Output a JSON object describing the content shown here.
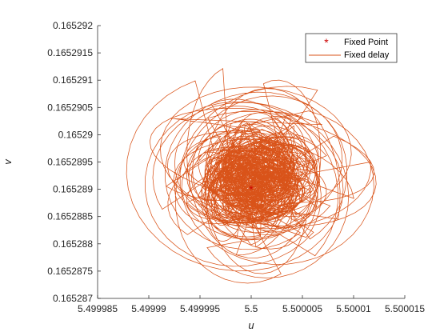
{
  "chart_data": {
    "type": "line",
    "title": "",
    "xlabel": "u",
    "ylabel": "v",
    "xlim": [
      5.499985,
      5.500015
    ],
    "ylim": [
      0.165287,
      0.165292
    ],
    "x_ticks": [
      5.499985,
      5.49999,
      5.499995,
      5.5,
      5.500005,
      5.50001,
      5.500015
    ],
    "x_tick_labels": [
      "5.499985",
      "5.49999",
      "5.499995",
      "5.5",
      "5.500005",
      "5.50001",
      "5.500015"
    ],
    "y_ticks": [
      0.165287,
      0.1652875,
      0.165288,
      0.1652885,
      0.165289,
      0.1652895,
      0.16529,
      0.1652905,
      0.165291,
      0.1652915,
      0.165292
    ],
    "y_tick_labels": [
      "0.165287",
      "0.1652875",
      "0.165288",
      "0.1652885",
      "0.165289",
      "0.1652895",
      "0.16529",
      "0.1652905",
      "0.165291",
      "0.1652915",
      "0.165292"
    ],
    "grid": false,
    "legend_position": "top-right",
    "series": [
      {
        "name": "Fixed Point",
        "type": "scatter",
        "marker": "asterisk",
        "color": "#cc0000",
        "x": [
          5.5
        ],
        "y": [
          0.165289
        ]
      },
      {
        "name": "Fixed delay",
        "type": "line",
        "color": "#d95319",
        "description_of_shape": "dense chaotic orbit around the fixed point",
        "center": [
          5.5000005,
          0.1652892
        ],
        "spread_x": [
          5.499987,
          5.5000145
        ],
        "spread_y": [
          0.1652872,
          0.1652918
        ]
      }
    ]
  }
}
